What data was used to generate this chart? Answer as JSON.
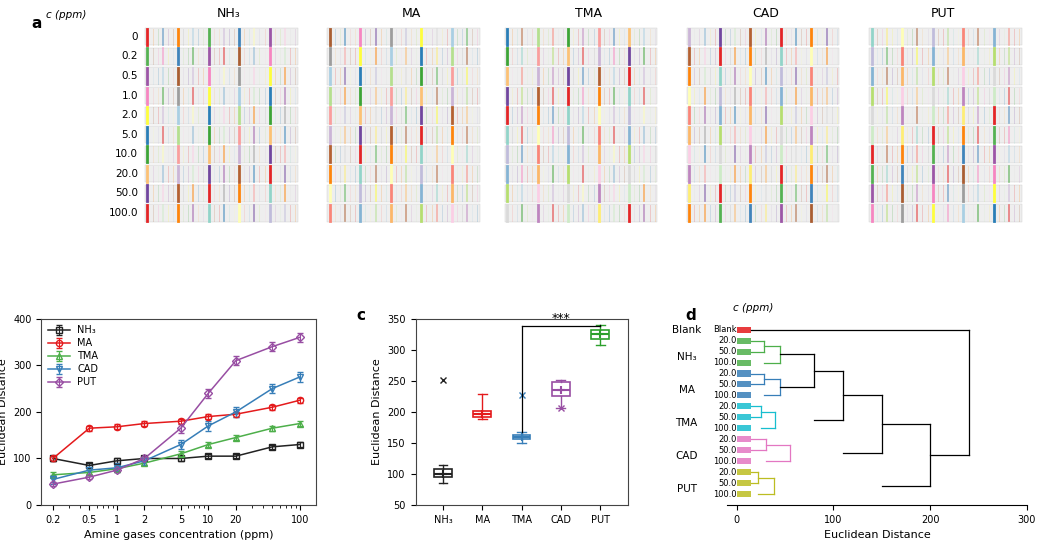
{
  "panel_a": {
    "concentrations": [
      "0",
      "0.2",
      "0.5",
      "1.0",
      "2.0",
      "5.0",
      "10.0",
      "20.0",
      "50.0",
      "100.0"
    ],
    "gases": [
      "NH₃",
      "MA",
      "TMA",
      "CAD",
      "PUT"
    ],
    "strip_colors": [
      "#e41a1c",
      "#ff7f00",
      "#4daf4a",
      "#377eb8",
      "#984ea3",
      "#a65628",
      "#f781bf",
      "#999999",
      "#ffff33",
      "#a6cee3",
      "#1f78b4",
      "#b2df8a",
      "#33a02c",
      "#fb9a99",
      "#fdbf6f",
      "#cab2d6",
      "#6a3d9a",
      "#b15928",
      "#e31a1c",
      "#ff7f00",
      "#8dd3c7",
      "#ffffb3",
      "#bebada",
      "#fb8072",
      "#80b1d3",
      "#fdb462",
      "#b3de69",
      "#fccde5",
      "#d9d9d9",
      "#bc80bd",
      "#ccebc5",
      "#ffed6f"
    ]
  },
  "panel_b": {
    "xlabel": "Amine gases concentration (ppm)",
    "ylabel": "Euclidean Distance",
    "series": {
      "NH3": {
        "x": [
          0.2,
          0.5,
          1,
          2,
          5,
          10,
          20,
          50,
          100
        ],
        "y": [
          100,
          85,
          95,
          100,
          100,
          105,
          105,
          125,
          130
        ],
        "yerr": [
          5,
          5,
          5,
          5,
          5,
          5,
          5,
          5,
          5
        ],
        "color": "#222222",
        "marker": "s",
        "label": "NH₃"
      },
      "MA": {
        "x": [
          0.2,
          0.5,
          1,
          2,
          5,
          10,
          20,
          50,
          100
        ],
        "y": [
          100,
          165,
          168,
          175,
          180,
          190,
          195,
          210,
          225
        ],
        "yerr": [
          5,
          5,
          5,
          5,
          5,
          5,
          5,
          5,
          5
        ],
        "color": "#e41a1c",
        "marker": "o",
        "label": "MA"
      },
      "TMA": {
        "x": [
          0.2,
          0.5,
          1,
          2,
          5,
          10,
          20,
          50,
          100
        ],
        "y": [
          65,
          70,
          78,
          90,
          110,
          130,
          145,
          165,
          175
        ],
        "yerr": [
          5,
          5,
          5,
          5,
          5,
          5,
          5,
          5,
          5
        ],
        "color": "#4daf4a",
        "marker": "^",
        "label": "TMA"
      },
      "CAD": {
        "x": [
          0.2,
          0.5,
          1,
          2,
          5,
          10,
          20,
          50,
          100
        ],
        "y": [
          55,
          75,
          80,
          95,
          130,
          170,
          200,
          250,
          275
        ],
        "yerr": [
          10,
          10,
          10,
          10,
          10,
          10,
          10,
          10,
          10
        ],
        "color": "#377eb8",
        "marker": "v",
        "label": "CAD"
      },
      "PUT": {
        "x": [
          0.2,
          0.5,
          1,
          2,
          5,
          10,
          20,
          50,
          100
        ],
        "y": [
          45,
          60,
          75,
          100,
          165,
          240,
          310,
          340,
          360
        ],
        "yerr": [
          5,
          5,
          5,
          5,
          10,
          10,
          10,
          10,
          10
        ],
        "color": "#984ea3",
        "marker": "D",
        "label": "PUT"
      }
    }
  },
  "panel_c": {
    "ylabel": "Euclidean Distance",
    "categories": [
      "NH₃",
      "MA",
      "TMA",
      "CAD",
      "PUT"
    ],
    "colors": [
      "#222222",
      "#e41a1c",
      "#377eb8",
      "#984ea3",
      "#2ca02c"
    ],
    "box_data": {
      "NH3": {
        "median": 100,
        "q1": 95,
        "q3": 108,
        "whislo": 85,
        "whishi": 115,
        "fliers": [
          252
        ]
      },
      "MA": {
        "median": 197,
        "q1": 192,
        "q3": 202,
        "whislo": 188,
        "whishi": 228,
        "fliers": []
      },
      "TMA": {
        "median": 160,
        "q1": 157,
        "q3": 163,
        "whislo": 150,
        "whishi": 168,
        "fliers": [
          227
        ]
      },
      "CAD": {
        "median": 235,
        "q1": 225,
        "q3": 248,
        "whislo": 207,
        "whishi": 252,
        "fliers": [
          207
        ]
      },
      "PUT": {
        "median": 325,
        "q1": 318,
        "q3": 332,
        "whislo": 308,
        "whishi": 340,
        "fliers": []
      }
    }
  },
  "panel_d": {
    "xlabel": "Euclidean Distance",
    "d_labels": [
      "Blank",
      "20.0",
      "50.0",
      "100.0",
      "20.0",
      "50.0",
      "100.0",
      "20.0",
      "50.0",
      "100.0",
      "20.0",
      "50.0",
      "100.0",
      "20.0",
      "50.0",
      "100.0"
    ],
    "d_colors": [
      "#e41a1c",
      "#4daf4a",
      "#4daf4a",
      "#4daf4a",
      "#377eb8",
      "#377eb8",
      "#377eb8",
      "#17becf",
      "#17becf",
      "#17becf",
      "#e377c2",
      "#e377c2",
      "#e377c2",
      "#bcbd22",
      "#bcbd22",
      "#bcbd22"
    ],
    "group_labels": [
      "Blank",
      "NH₃",
      "MA",
      "TMA",
      "CAD",
      "PUT"
    ],
    "group_y": [
      16.0,
      13.5,
      10.5,
      7.5,
      4.5,
      1.5
    ]
  }
}
